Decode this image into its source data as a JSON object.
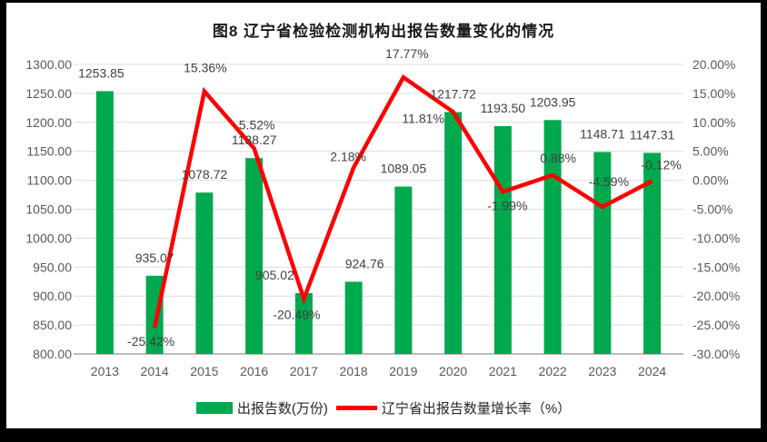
{
  "frame": {
    "border_color": "#000000",
    "page_color": "#ffffff"
  },
  "chart_data": {
    "type": "bar+line",
    "title": "图8  辽宁省检验检测机构出报告数量变化的情况",
    "categories": [
      "2013",
      "2014",
      "2015",
      "2016",
      "2017",
      "2018",
      "2019",
      "2020",
      "2021",
      "2022",
      "2023",
      "2024"
    ],
    "series": [
      {
        "name": "出报告数(万份)",
        "type": "bar",
        "axis": "left",
        "color": "#00a84e",
        "values": [
          1253.85,
          935.07,
          1078.72,
          1138.27,
          905.02,
          924.76,
          1089.05,
          1217.72,
          1193.5,
          1203.95,
          1148.71,
          1147.31
        ],
        "labels": [
          "1253.85",
          "935.07",
          "1078.72",
          "1138.27",
          "905.02",
          "924.76",
          "1089.05",
          "1217.72",
          "1193.50",
          "1203.95",
          "1148.71",
          "1147.31"
        ]
      },
      {
        "name": "辽宁省出报告数量增长率（%）",
        "type": "line",
        "axis": "right",
        "color": "#fe0000",
        "values": [
          null,
          -25.42,
          15.36,
          5.52,
          -20.49,
          2.18,
          17.77,
          11.81,
          -1.99,
          0.88,
          -4.59,
          -0.12
        ],
        "labels": [
          null,
          "-25.42%",
          "15.36%",
          "5.52%",
          "-20.49%",
          "2.18%",
          "17.77%",
          "11.81%",
          "-1.99%",
          "0.88%",
          "-4.59%",
          "-0.12%"
        ]
      }
    ],
    "left_axis": {
      "min": 800,
      "max": 1300,
      "step": 50,
      "tick_labels": [
        "1300.00",
        "1250.00",
        "1200.00",
        "1150.00",
        "1100.00",
        "1050.00",
        "1000.00",
        "950.00",
        "900.00",
        "850.00",
        "800.00"
      ]
    },
    "right_axis": {
      "min": -30,
      "max": 20,
      "step": 5,
      "tick_labels": [
        "20.00%",
        "15.00%",
        "10.00%",
        "5.00%",
        "0.00%",
        "-5.00%",
        "-10.00%",
        "-15.00%",
        "-20.00%",
        "-25.00%",
        "-30.00%"
      ]
    },
    "grid": "horizontal",
    "legend_position": "bottom",
    "colors": {
      "gridline": "#dcdcdc",
      "axis_line": "#a8a8a8",
      "tick_text": "#595959",
      "data_label_text": "#404040"
    }
  }
}
